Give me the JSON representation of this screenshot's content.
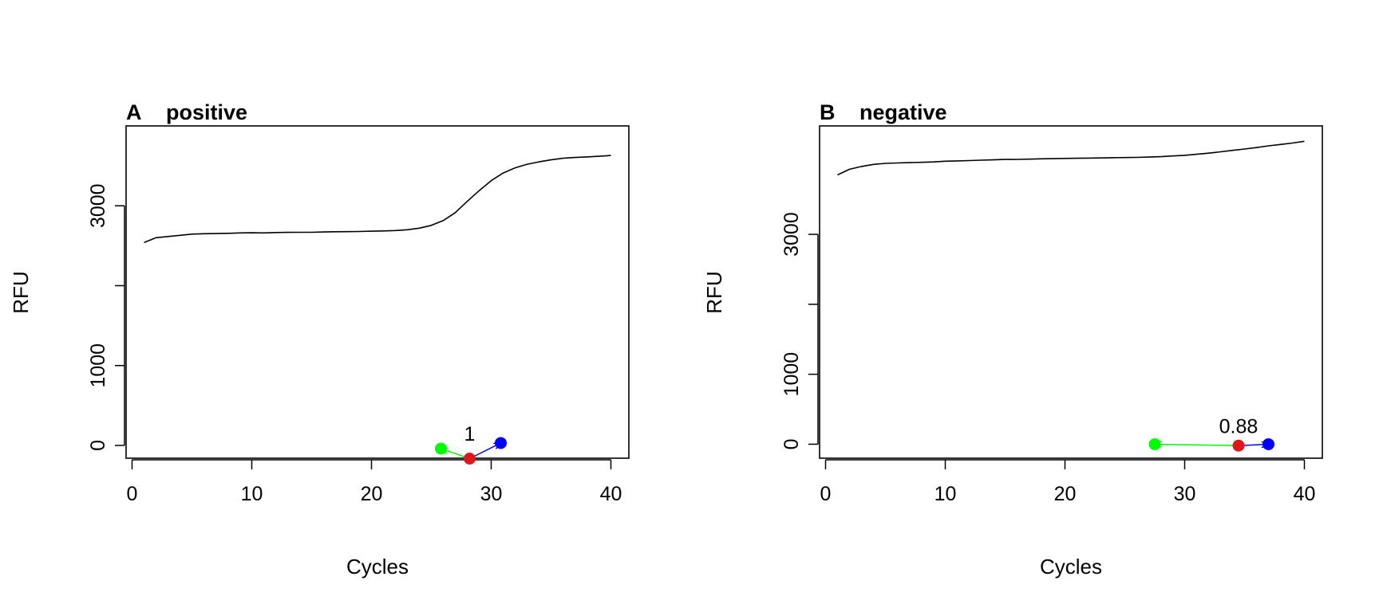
{
  "chart_data": [
    {
      "type": "line",
      "panel_letter": "A",
      "title": "positive",
      "xlabel": "Cycles",
      "ylabel": "RFU",
      "xlim": [
        -0.5,
        41.5
      ],
      "ylim": [
        -160,
        4000
      ],
      "xticks": [
        0,
        10,
        20,
        30,
        40
      ],
      "yticks": [
        0,
        1000,
        2000,
        3000
      ],
      "ytick_labels": [
        "0",
        "1000",
        "",
        "3000"
      ],
      "series": [
        {
          "x": [
            1,
            2,
            3,
            4,
            5,
            6,
            7,
            8,
            9,
            10,
            11,
            12,
            13,
            14,
            15,
            16,
            17,
            18,
            19,
            20,
            21,
            22,
            23,
            24,
            25,
            26,
            27,
            28,
            29,
            30,
            31,
            32,
            33,
            34,
            35,
            36,
            37,
            38,
            39,
            40
          ],
          "values": [
            2540,
            2600,
            2615,
            2630,
            2645,
            2650,
            2652,
            2655,
            2660,
            2662,
            2660,
            2665,
            2667,
            2668,
            2668,
            2672,
            2675,
            2676,
            2678,
            2682,
            2685,
            2690,
            2700,
            2720,
            2755,
            2815,
            2915,
            3055,
            3190,
            3315,
            3410,
            3475,
            3520,
            3550,
            3575,
            3595,
            3605,
            3612,
            3620,
            3630
          ]
        }
      ],
      "markers": [
        {
          "name": "green",
          "x": 25.8,
          "y": -40,
          "color": "#00ff00"
        },
        {
          "name": "red",
          "x": 28.2,
          "y": -165,
          "color": "#e0161b"
        },
        {
          "name": "blue",
          "x": 30.8,
          "y": 30,
          "color": "#0000ff"
        }
      ],
      "annotation": {
        "text": "1",
        "x": 28.2,
        "y": 60
      }
    },
    {
      "type": "line",
      "panel_letter": "B",
      "title": "negative",
      "xlabel": "Cycles",
      "ylabel": "RFU",
      "xlim": [
        -0.5,
        41.5
      ],
      "ylim": [
        -200,
        4550
      ],
      "xticks": [
        0,
        10,
        20,
        30,
        40
      ],
      "yticks": [
        0,
        1000,
        2000,
        3000
      ],
      "ytick_labels": [
        "0",
        "1000",
        "",
        "3000"
      ],
      "series": [
        {
          "x": [
            1,
            2,
            3,
            4,
            5,
            6,
            7,
            8,
            9,
            10,
            11,
            12,
            13,
            14,
            15,
            16,
            17,
            18,
            19,
            20,
            21,
            22,
            23,
            24,
            25,
            26,
            27,
            28,
            29,
            30,
            31,
            32,
            33,
            34,
            35,
            36,
            37,
            38,
            39,
            40
          ],
          "values": [
            3850,
            3930,
            3970,
            4000,
            4015,
            4020,
            4025,
            4030,
            4035,
            4045,
            4050,
            4055,
            4060,
            4065,
            4070,
            4072,
            4075,
            4080,
            4082,
            4085,
            4088,
            4090,
            4092,
            4095,
            4098,
            4100,
            4105,
            4110,
            4120,
            4130,
            4145,
            4160,
            4180,
            4200,
            4220,
            4240,
            4265,
            4285,
            4305,
            4330
          ]
        }
      ],
      "markers": [
        {
          "name": "green",
          "x": 27.5,
          "y": 0,
          "color": "#00ff00"
        },
        {
          "name": "red",
          "x": 34.5,
          "y": -20,
          "color": "#e0161b"
        },
        {
          "name": "blue",
          "x": 37.0,
          "y": 0,
          "color": "#0000ff"
        }
      ],
      "annotation": {
        "text": "0.88",
        "x": 34.5,
        "y": 160
      }
    }
  ]
}
